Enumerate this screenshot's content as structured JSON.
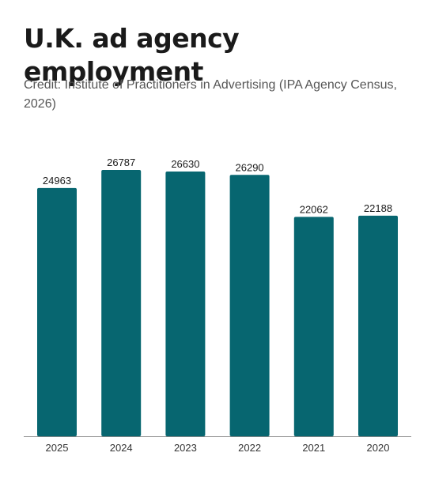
{
  "title": "U.K. ad agency employment",
  "credit": "Credit: Institute of Practitioners in Advertising (IPA Agency Census, 2026)",
  "colors": {
    "bar": "#076670",
    "axis": "#888888"
  },
  "chart_data": {
    "type": "bar",
    "title": "U.K. ad agency employment",
    "xlabel": "",
    "ylabel": "",
    "categories": [
      "2025",
      "2024",
      "2023",
      "2022",
      "2021",
      "2020"
    ],
    "values": [
      24963,
      26787,
      26630,
      26290,
      22062,
      22188
    ],
    "ylim": [
      0,
      26787
    ],
    "grid": false,
    "legend": "none",
    "data_labels": true
  }
}
